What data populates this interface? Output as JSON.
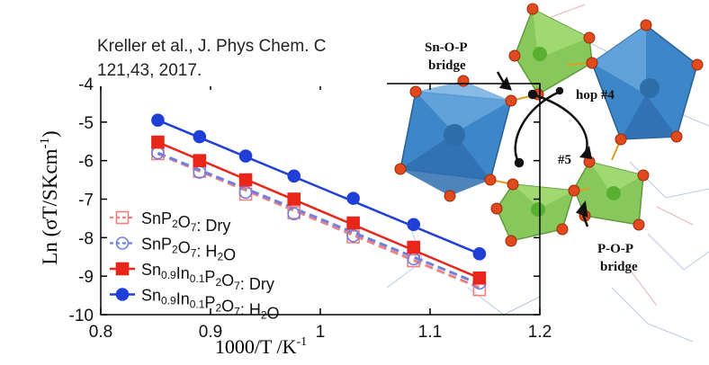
{
  "citation": {
    "line1": "Kreller et al., J. Phys Chem. C",
    "line2": "121,43, 2017."
  },
  "chart_data": {
    "type": "line",
    "title": "",
    "xlabel": "1000/T /K",
    "xlabel_sup": "-1",
    "ylabel": "Ln (σT/SKcm",
    "ylabel_sup": "-1",
    "ylabel_close": ")",
    "xlim": [
      0.8,
      1.2
    ],
    "ylim": [
      -10,
      -4
    ],
    "xticks": [
      "0.8",
      "0.9",
      "1",
      "1.1",
      "1.2"
    ],
    "yticks": [
      "-10",
      "-9",
      "-8",
      "-7",
      "-6",
      "-5",
      "-4"
    ],
    "legend_position": "bottom-left",
    "series": [
      {
        "name": "SnP2O7: Dry",
        "name_parts": [
          [
            "SnP",
            "n"
          ],
          [
            "2",
            "sub"
          ],
          [
            "O",
            "n"
          ],
          [
            "7",
            "sub"
          ],
          [
            ": Dry",
            "n"
          ]
        ],
        "color": "#f08080",
        "marker": "square-open",
        "line": "dashed",
        "points": [
          [
            0.852,
            -5.82
          ],
          [
            0.89,
            -6.28
          ],
          [
            0.932,
            -6.87
          ],
          [
            0.976,
            -7.35
          ],
          [
            1.03,
            -7.98
          ],
          [
            1.085,
            -8.6
          ],
          [
            1.145,
            -9.35
          ]
        ],
        "fit": [
          [
            0.852,
            -5.82
          ],
          [
            1.145,
            -9.3
          ]
        ]
      },
      {
        "name": "SnP2O7: H2O",
        "name_parts": [
          [
            "SnP",
            "n"
          ],
          [
            "2",
            "sub"
          ],
          [
            "O",
            "n"
          ],
          [
            "7",
            "sub"
          ],
          [
            ": H",
            "n"
          ],
          [
            "2",
            "sub"
          ],
          [
            "O",
            "n"
          ]
        ],
        "color": "#6f7fe0",
        "marker": "circle-open",
        "line": "dashed",
        "points": [
          [
            0.852,
            -5.8
          ],
          [
            0.89,
            -6.3
          ],
          [
            0.932,
            -6.82
          ],
          [
            0.976,
            -7.38
          ],
          [
            1.03,
            -7.95
          ],
          [
            1.085,
            -8.55
          ],
          [
            1.145,
            -9.18
          ]
        ],
        "fit": [
          [
            0.852,
            -5.8
          ],
          [
            1.145,
            -9.2
          ]
        ]
      },
      {
        "name": "Sn0.9In0.1P2O7: Dry",
        "name_parts": [
          [
            "Sn",
            "n"
          ],
          [
            "0.9",
            "sub"
          ],
          [
            "In",
            "n"
          ],
          [
            "0.1",
            "sub"
          ],
          [
            "P",
            "n"
          ],
          [
            "2",
            "sub"
          ],
          [
            "O",
            "n"
          ],
          [
            "7",
            "sub"
          ],
          [
            ": Dry",
            "n"
          ]
        ],
        "color": "#e8261a",
        "marker": "square-filled",
        "line": "solid",
        "points": [
          [
            0.852,
            -5.52
          ],
          [
            0.89,
            -6.0
          ],
          [
            0.932,
            -6.5
          ],
          [
            0.976,
            -7.0
          ],
          [
            1.03,
            -7.62
          ],
          [
            1.085,
            -8.25
          ],
          [
            1.145,
            -9.05
          ]
        ],
        "fit": [
          [
            0.852,
            -5.52
          ],
          [
            1.145,
            -9.05
          ]
        ]
      },
      {
        "name": "Sn0.9In0.1P2O7: H2O",
        "name_parts": [
          [
            "Sn",
            "n"
          ],
          [
            "0.9",
            "sub"
          ],
          [
            "In",
            "n"
          ],
          [
            "0.1",
            "sub"
          ],
          [
            "P",
            "n"
          ],
          [
            "2",
            "sub"
          ],
          [
            "O",
            "n"
          ],
          [
            "7",
            "sub"
          ],
          [
            ": H",
            "n"
          ],
          [
            "2",
            "sub"
          ],
          [
            "O",
            "n"
          ]
        ],
        "color": "#1f3fd6",
        "marker": "circle-filled",
        "line": "solid",
        "points": [
          [
            0.852,
            -4.95
          ],
          [
            0.89,
            -5.38
          ],
          [
            0.932,
            -5.88
          ],
          [
            0.976,
            -6.4
          ],
          [
            1.03,
            -6.98
          ],
          [
            1.085,
            -7.66
          ],
          [
            1.145,
            -8.42
          ]
        ],
        "fit": [
          [
            0.852,
            -4.95
          ],
          [
            1.145,
            -8.42
          ]
        ]
      }
    ]
  },
  "structure": {
    "colors": {
      "octahedron": "#3d86c8",
      "tetrahedron": "#7cc24a",
      "oxygen": "#e04a1c",
      "arrow": "#111111"
    },
    "labels": {
      "sn_o_p_line1": "Sn-O-P",
      "sn_o_p_line2": "bridge",
      "hop4": "hop #4",
      "hop5": "#5",
      "p_o_p_line1": "P-O-P",
      "p_o_p_line2": "bridge"
    }
  }
}
